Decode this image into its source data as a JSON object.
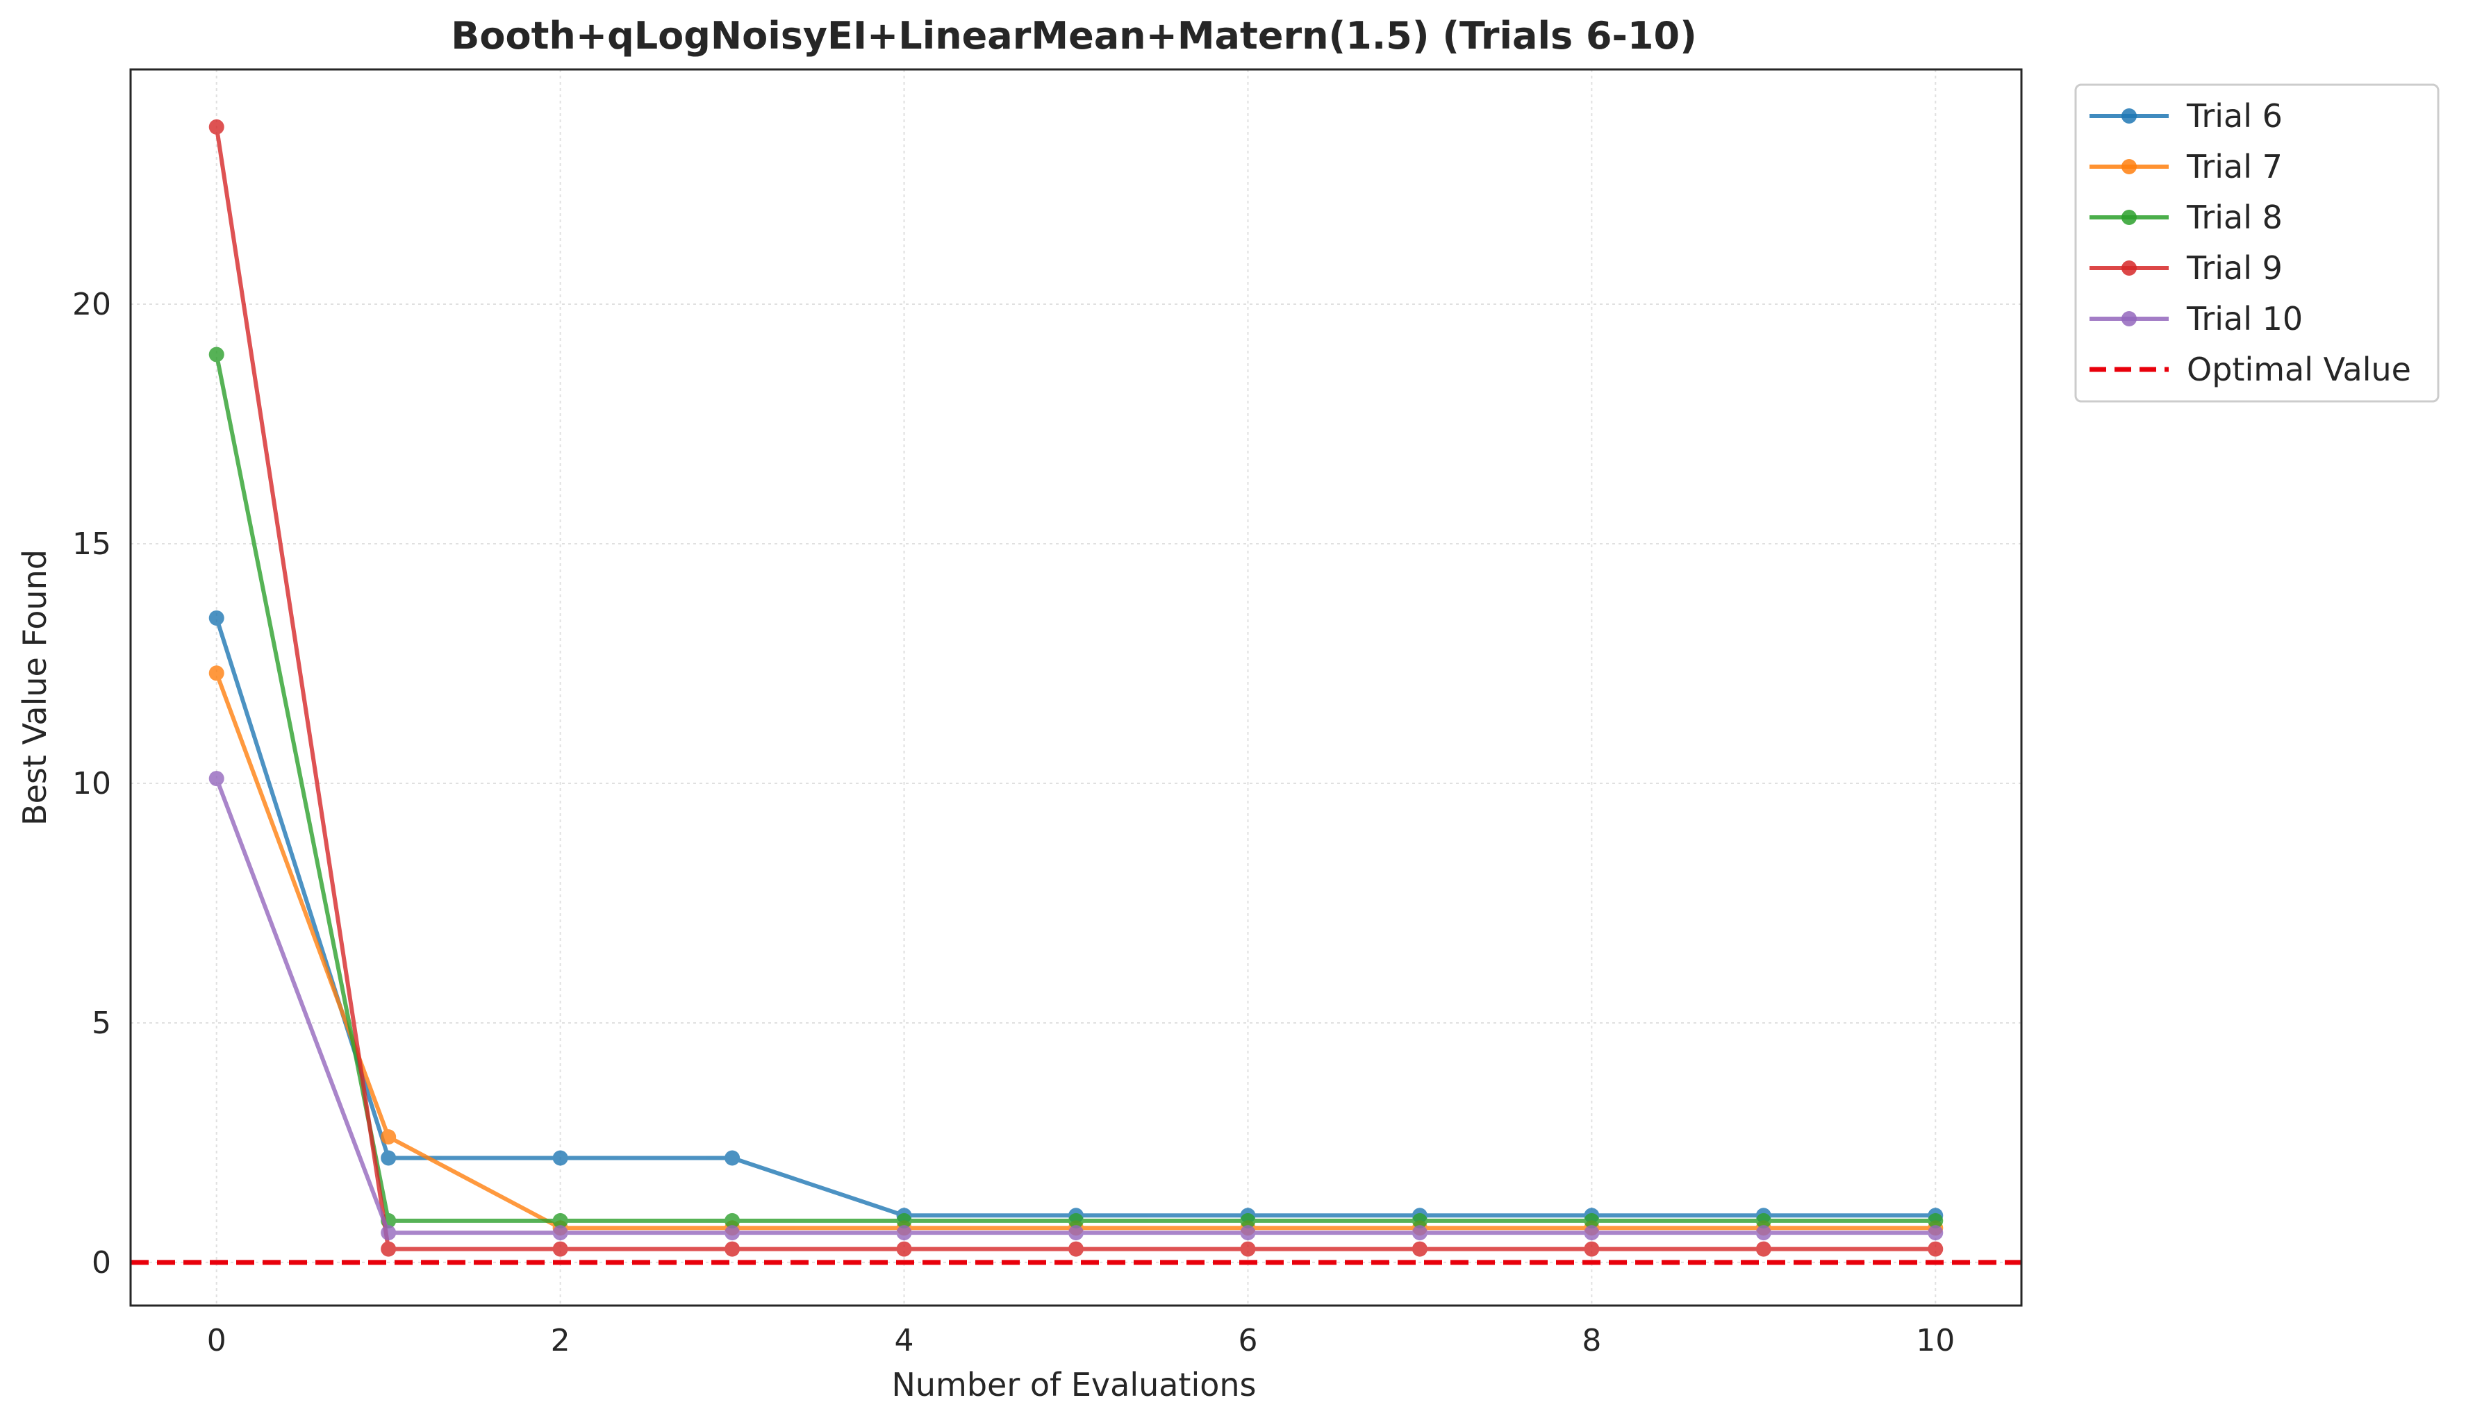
{
  "chart_data": {
    "type": "line",
    "title": "Booth+qLogNoisyEI+LinearMean+Matern(1.5) (Trials 6-10)",
    "xlabel": "Number of Evaluations",
    "ylabel": "Best Value Found",
    "xlim": [
      -0.5,
      10.5
    ],
    "ylim": [
      -0.9,
      24.9
    ],
    "xticks": [
      0,
      2,
      4,
      6,
      8,
      10
    ],
    "yticks": [
      0,
      5,
      10,
      15,
      20
    ],
    "grid": true,
    "legend_position": "outside-top-right",
    "x": [
      0,
      1,
      2,
      3,
      4,
      5,
      6,
      7,
      8,
      9,
      10
    ],
    "series": [
      {
        "name": "Trial 6",
        "color": "#1f77b4",
        "values": [
          13.45,
          2.18,
          2.18,
          2.18,
          0.98,
          0.98,
          0.98,
          0.98,
          0.98,
          0.98,
          0.98
        ]
      },
      {
        "name": "Trial 7",
        "color": "#ff7f0e",
        "values": [
          12.3,
          2.62,
          0.72,
          0.72,
          0.72,
          0.72,
          0.72,
          0.72,
          0.72,
          0.72,
          0.72
        ]
      },
      {
        "name": "Trial 8",
        "color": "#2ca02c",
        "values": [
          18.95,
          0.87,
          0.87,
          0.87,
          0.87,
          0.87,
          0.87,
          0.87,
          0.87,
          0.87,
          0.87
        ]
      },
      {
        "name": "Trial 9",
        "color": "#d62728",
        "values": [
          23.7,
          0.28,
          0.28,
          0.28,
          0.28,
          0.28,
          0.28,
          0.28,
          0.28,
          0.28,
          0.28
        ]
      },
      {
        "name": "Trial 10",
        "color": "#9467bd",
        "values": [
          10.1,
          0.62,
          0.62,
          0.62,
          0.62,
          0.62,
          0.62,
          0.62,
          0.62,
          0.62,
          0.62
        ]
      }
    ],
    "reference_line": {
      "name": "Optimal Value",
      "y": 0,
      "color": "#e8000b",
      "style": "dashed"
    }
  }
}
